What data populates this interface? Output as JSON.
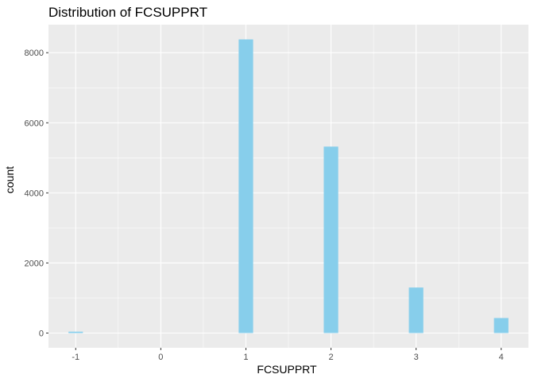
{
  "chart_data": {
    "type": "bar",
    "title": "Distribution of FCSUPPRT",
    "xlabel": "FCSUPPRT",
    "ylabel": "count",
    "x": [
      -1,
      1,
      2,
      3,
      4
    ],
    "values": [
      40,
      8380,
      5320,
      1300,
      430
    ],
    "bin_width": 0.17,
    "x_ticks": [
      -1,
      0,
      1,
      2,
      3,
      4
    ],
    "x_tick_labels": [
      "-1",
      "0",
      "1",
      "2",
      "3",
      "4"
    ],
    "y_ticks": [
      0,
      2000,
      4000,
      6000,
      8000
    ],
    "y_tick_labels": [
      "0",
      "2000",
      "4000",
      "6000",
      "8000"
    ],
    "xlim": [
      -1.32,
      4.32
    ],
    "ylim": [
      -420,
      8800
    ],
    "grid": true,
    "legend": "none",
    "colors": {
      "panel_background": "#ebebeb",
      "grid_major": "#ffffff",
      "bar_fill": "#87ceeb",
      "tick_text": "#4d4d4d",
      "tick_mark": "#333333"
    }
  }
}
